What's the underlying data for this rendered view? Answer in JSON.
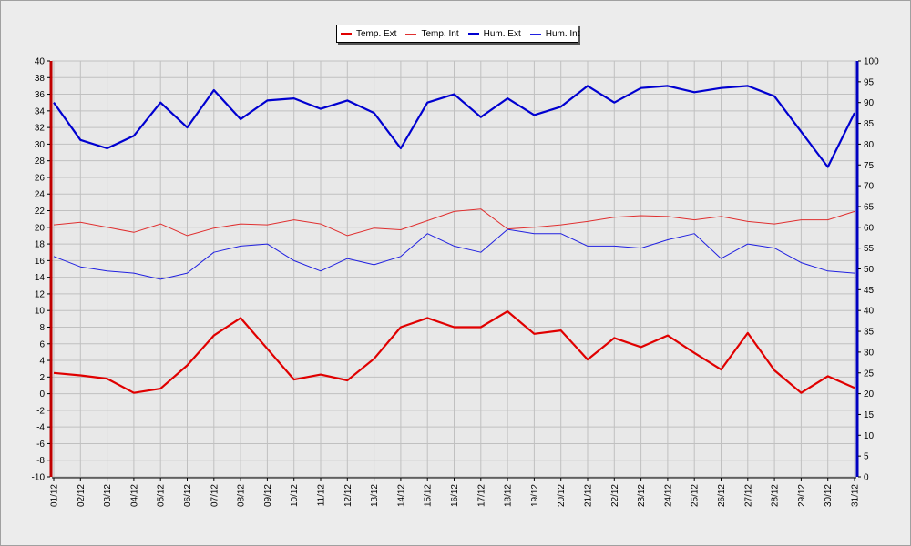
{
  "colors": {
    "temp_ext": "#e00000",
    "temp_int": "#e03030",
    "hum_ext": "#0000d0",
    "hum_int": "#2020e0",
    "grid": "#c0c0c0",
    "plot_bg": "#e8e8e8"
  },
  "legend": [
    {
      "label": "Temp. Ext",
      "series": "temp_ext"
    },
    {
      "label": "Temp. Int",
      "series": "temp_int"
    },
    {
      "label": "Hum. Ext",
      "series": "hum_ext"
    },
    {
      "label": "Hum. Int",
      "series": "hum_int"
    }
  ],
  "chart_data": {
    "type": "line",
    "title": "",
    "xlabel": "",
    "ylabel_left": "",
    "ylabel_right": "",
    "grid": true,
    "legend_placement": "top-center",
    "categories": [
      "01/12",
      "02/12",
      "03/12",
      "04/12",
      "05/12",
      "06/12",
      "07/12",
      "08/12",
      "09/12",
      "10/12",
      "11/12",
      "12/12",
      "13/12",
      "14/12",
      "15/12",
      "16/12",
      "17/12",
      "18/12",
      "19/12",
      "20/12",
      "21/12",
      "22/12",
      "23/12",
      "24/12",
      "25/12",
      "26/12",
      "27/12",
      "28/12",
      "29/12",
      "30/12",
      "31/12"
    ],
    "y_left": {
      "min": -10,
      "max": 40,
      "step": 2,
      "ticks": [
        "-10",
        "-8",
        "-6",
        "-4",
        "-2",
        "0",
        "2",
        "4",
        "6",
        "8",
        "10",
        "12",
        "14",
        "16",
        "18",
        "20",
        "22",
        "24",
        "26",
        "28",
        "30",
        "32",
        "34",
        "36",
        "38",
        "40"
      ]
    },
    "y_right": {
      "min": 0,
      "max": 100,
      "step": 5,
      "ticks": [
        "0",
        "5",
        "10",
        "15",
        "20",
        "25",
        "30",
        "35",
        "40",
        "45",
        "50",
        "55",
        "60",
        "65",
        "70",
        "75",
        "80",
        "85",
        "90",
        "95",
        "100"
      ]
    },
    "series": [
      {
        "name": "Temp. Ext",
        "axis": "left",
        "key": "temp_ext",
        "values": [
          2.5,
          2.2,
          1.8,
          0.1,
          0.6,
          3.4,
          7.0,
          9.1,
          5.4,
          1.7,
          2.3,
          1.6,
          4.2,
          8.0,
          9.1,
          8.0,
          8.0,
          9.9,
          7.2,
          7.6,
          4.1,
          6.7,
          5.6,
          7.0,
          4.9,
          2.9,
          7.3,
          2.8,
          0.1,
          2.1,
          0.7
        ]
      },
      {
        "name": "Temp. Int",
        "axis": "left",
        "key": "temp_int",
        "values": [
          20.3,
          20.6,
          20.0,
          19.4,
          20.4,
          19.0,
          19.9,
          20.4,
          20.3,
          20.9,
          20.4,
          19.0,
          19.9,
          19.7,
          20.8,
          21.9,
          22.2,
          19.8,
          20.0,
          20.3,
          20.7,
          21.2,
          21.4,
          21.3,
          20.9,
          21.3,
          20.7,
          20.4,
          20.9,
          20.9,
          21.9
        ]
      },
      {
        "name": "Hum. Ext",
        "axis": "right",
        "key": "hum_ext",
        "values": [
          90,
          81,
          79,
          82,
          90,
          84,
          93,
          86,
          90.5,
          91,
          88.5,
          90.5,
          87.5,
          79,
          90,
          92,
          86.5,
          91,
          87,
          89,
          94,
          90,
          93.5,
          94,
          92.5,
          93.5,
          94,
          91.5,
          83,
          74.5,
          87.5
        ]
      },
      {
        "name": "Hum. Int",
        "axis": "right",
        "key": "hum_int",
        "values": [
          53,
          50.5,
          49.5,
          49,
          47.5,
          49,
          54,
          55.5,
          56,
          52,
          49.5,
          52.5,
          51,
          53,
          58.5,
          55.5,
          54,
          59.5,
          58.5,
          58.5,
          55.5,
          55.5,
          55,
          57,
          58.5,
          52.5,
          56,
          55,
          51.5,
          49.5,
          49
        ]
      }
    ]
  }
}
